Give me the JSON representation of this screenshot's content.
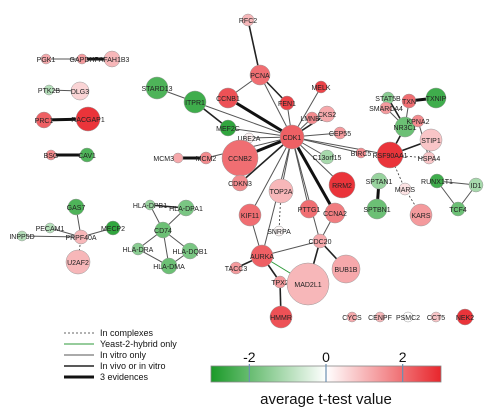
{
  "colors": {
    "red": "#e8262c",
    "green": "#22a030",
    "white": "#ffffff"
  },
  "nodes": [
    {
      "id": "CDK1",
      "v": 2.2
    },
    {
      "id": "PCNA",
      "v": 2.0
    },
    {
      "id": "RFC2",
      "v": 1.0
    },
    {
      "id": "CCNB1",
      "v": 2.4
    },
    {
      "id": "FEN1",
      "v": 2.6
    },
    {
      "id": "MELK",
      "v": 2.6
    },
    {
      "id": "LMNB1",
      "v": 1.6
    },
    {
      "id": "STARD13",
      "v": -2.4
    },
    {
      "id": "ITPR1",
      "v": -2.6
    },
    {
      "id": "MEF2C",
      "v": -2.8
    },
    {
      "id": "CKS2",
      "v": 1.2
    },
    {
      "id": "CEP55",
      "v": 1.4
    },
    {
      "id": "UBE2A",
      "v": 0.2
    },
    {
      "id": "C13orf15",
      "v": -1.2
    },
    {
      "id": "BIRC5",
      "v": 1.6
    },
    {
      "id": "MCM3",
      "v": 1.2
    },
    {
      "id": "MCM2",
      "v": 1.6
    },
    {
      "id": "CCNB2",
      "v": 2.0
    },
    {
      "id": "CDKN3",
      "v": 1.6
    },
    {
      "id": "TOP2A",
      "v": 1.0
    },
    {
      "id": "RRM2",
      "v": 2.8
    },
    {
      "id": "KIF11",
      "v": 2.0
    },
    {
      "id": "PTTG1",
      "v": 2.0
    },
    {
      "id": "CCNA2",
      "v": 1.8
    },
    {
      "id": "SNRPA",
      "v": 0.1
    },
    {
      "id": "CDC20",
      "v": 1.2
    },
    {
      "id": "AURKA",
      "v": 2.2
    },
    {
      "id": "TACC3",
      "v": 1.4
    },
    {
      "id": "TPX2",
      "v": 1.4
    },
    {
      "id": "MAD2L1",
      "v": 1.0
    },
    {
      "id": "BUB1B",
      "v": 1.2
    },
    {
      "id": "HMMR",
      "v": 2.4
    },
    {
      "id": "PGK1",
      "v": 1.2
    },
    {
      "id": "GAPDH",
      "v": 1.4
    },
    {
      "id": "PAFAH1B3",
      "v": 1.0
    },
    {
      "id": "PTK2B",
      "v": -1.0
    },
    {
      "id": "DLG3",
      "v": 0.6
    },
    {
      "id": "PRC1",
      "v": 2.2
    },
    {
      "id": "RACGAP1",
      "v": 2.8
    },
    {
      "id": "BSG",
      "v": 1.6
    },
    {
      "id": "CAV1",
      "v": -2.4
    },
    {
      "id": "STAT5B",
      "v": -1.6
    },
    {
      "id": "TXN",
      "v": 2.0
    },
    {
      "id": "TXNIP",
      "v": -2.6
    },
    {
      "id": "SMARCA4",
      "v": 1.4
    },
    {
      "id": "NR3C1",
      "v": -2.0
    },
    {
      "id": "KPNA2",
      "v": 1.6
    },
    {
      "id": "RSF90AA1",
      "v": 2.8
    },
    {
      "id": "STIP1",
      "v": 0.8
    },
    {
      "id": "HSPA4",
      "v": 0.8
    },
    {
      "id": "SPTAN1",
      "v": -1.4
    },
    {
      "id": "MARS",
      "v": 0.4
    },
    {
      "id": "RUNX1T1",
      "v": -2.6
    },
    {
      "id": "ID1",
      "v": -1.2
    },
    {
      "id": "SPTBN1",
      "v": -2.0
    },
    {
      "id": "TCF4",
      "v": -2.0
    },
    {
      "id": "KARS",
      "v": 1.4
    },
    {
      "id": "GAS7",
      "v": -2.4
    },
    {
      "id": "PECAM1",
      "v": -1.0
    },
    {
      "id": "MECP2",
      "v": -2.8
    },
    {
      "id": "INPP5D",
      "v": -1.0
    },
    {
      "id": "PRPF40A",
      "v": 1.0
    },
    {
      "id": "U2AF2",
      "v": 1.0
    },
    {
      "id": "HLA-DPB1",
      "v": -1.4
    },
    {
      "id": "HLA-DPA1",
      "v": -1.8
    },
    {
      "id": "CD74",
      "v": -2.0
    },
    {
      "id": "HLA-DRA",
      "v": -1.6
    },
    {
      "id": "HLA-DQB1",
      "v": -1.8
    },
    {
      "id": "HLA-DMA",
      "v": -2.0
    },
    {
      "id": "CYCS",
      "v": 1.2
    },
    {
      "id": "CENPF",
      "v": 1.0
    },
    {
      "id": "PSMC2",
      "v": 0.0
    },
    {
      "id": "CCT5",
      "v": 0.8
    },
    {
      "id": "NEK2",
      "v": 2.8
    }
  ],
  "edges": [
    {
      "a": "CDK1",
      "b": "PCNA",
      "t": "invitro"
    },
    {
      "a": "CDK1",
      "b": "CCNB1",
      "t": "three"
    },
    {
      "a": "CDK1",
      "b": "FEN1",
      "t": "invitro"
    },
    {
      "a": "CDK1",
      "b": "MELK",
      "t": "invitro"
    },
    {
      "a": "CDK1",
      "b": "LMNB1",
      "t": "invitro"
    },
    {
      "a": "CDK1",
      "b": "CKS2",
      "t": "vivo"
    },
    {
      "a": "CDK1",
      "b": "CEP55",
      "t": "invitro"
    },
    {
      "a": "CDK1",
      "b": "C13orf15",
      "t": "invitro"
    },
    {
      "a": "CDK1",
      "b": "BIRC5",
      "t": "invitro"
    },
    {
      "a": "CDK1",
      "b": "UBE2A",
      "t": "invitro"
    },
    {
      "a": "CDK1",
      "b": "CCNB2",
      "t": "three"
    },
    {
      "a": "CDK1",
      "b": "CDKN3",
      "t": "vivo"
    },
    {
      "a": "CDK1",
      "b": "TOP2A",
      "t": "invitro"
    },
    {
      "a": "CDK1",
      "b": "RRM2",
      "t": "invitro"
    },
    {
      "a": "CDK1",
      "b": "KIF11",
      "t": "invitro"
    },
    {
      "a": "CDK1",
      "b": "PTTG1",
      "t": "invitro"
    },
    {
      "a": "CDK1",
      "b": "CCNA2",
      "t": "three"
    },
    {
      "a": "CDK1",
      "b": "MEF2C",
      "t": "invitro"
    },
    {
      "a": "CDK1",
      "b": "ITPR1",
      "t": "invitro"
    },
    {
      "a": "CDK1",
      "b": "MCM2",
      "t": "invitro"
    },
    {
      "a": "CDK1",
      "b": "RSF90AA1",
      "t": "invitro"
    },
    {
      "a": "CDK1",
      "b": "AURKA",
      "t": "invitro"
    },
    {
      "a": "CDK1",
      "b": "CDC20",
      "t": "invitro"
    },
    {
      "a": "PCNA",
      "b": "RFC2",
      "t": "vivo"
    },
    {
      "a": "PCNA",
      "b": "FEN1",
      "t": "vivo"
    },
    {
      "a": "PCNA",
      "b": "CCNB1",
      "t": "invitro"
    },
    {
      "a": "STARD13",
      "b": "ITPR1",
      "t": "invitro"
    },
    {
      "a": "ITPR1",
      "b": "MEF2C",
      "t": "vivo"
    },
    {
      "a": "MCM3",
      "b": "MCM2",
      "t": "three"
    },
    {
      "a": "TOP2A",
      "b": "SNRPA",
      "t": "complex"
    },
    {
      "a": "CCNA2",
      "b": "CDC20",
      "t": "invitro"
    },
    {
      "a": "CDC20",
      "b": "MAD2L1",
      "t": "vivo"
    },
    {
      "a": "CDC20",
      "b": "BUB1B",
      "t": "vivo"
    },
    {
      "a": "CDC20",
      "b": "AURKA",
      "t": "invitro"
    },
    {
      "a": "AURKA",
      "b": "TACC3",
      "t": "vivo"
    },
    {
      "a": "AURKA",
      "b": "TPX2",
      "t": "vivo"
    },
    {
      "a": "AURKA",
      "b": "KIF11",
      "t": "invitro"
    },
    {
      "a": "AURKA",
      "b": "MAD2L1",
      "t": "yeast"
    },
    {
      "a": "TPX2",
      "b": "HMMR",
      "t": "vivo"
    },
    {
      "a": "PGK1",
      "b": "GAPDH",
      "t": "invitro"
    },
    {
      "a": "GAPDH",
      "b": "PAFAH1B3",
      "t": "three"
    },
    {
      "a": "PTK2B",
      "b": "DLG3",
      "t": "invitro"
    },
    {
      "a": "PRC1",
      "b": "RACGAP1",
      "t": "three"
    },
    {
      "a": "BSG",
      "b": "CAV1",
      "t": "three"
    },
    {
      "a": "STAT5B",
      "b": "NR3C1",
      "t": "vivo"
    },
    {
      "a": "TXN",
      "b": "TXNIP",
      "t": "three"
    },
    {
      "a": "SMARCA4",
      "b": "NR3C1",
      "t": "invitro"
    },
    {
      "a": "NR3C1",
      "b": "RSF90AA1",
      "t": "vivo"
    },
    {
      "a": "NR3C1",
      "b": "TXN",
      "t": "invitro"
    },
    {
      "a": "NR3C1",
      "b": "KPNA2",
      "t": "invitro"
    },
    {
      "a": "RSF90AA1",
      "b": "STIP1",
      "t": "vivo"
    },
    {
      "a": "RSF90AA1",
      "b": "HSPA4",
      "t": "complex"
    },
    {
      "a": "RSF90AA1",
      "b": "MARS",
      "t": "complex"
    },
    {
      "a": "KPNA2",
      "b": "HSPA4",
      "t": "invitro"
    },
    {
      "a": "STIP1",
      "b": "HSPA4",
      "t": "invitro"
    },
    {
      "a": "MARS",
      "b": "KARS",
      "t": "complex"
    },
    {
      "a": "RUNX1T1",
      "b": "ID1",
      "t": "invitro"
    },
    {
      "a": "RUNX1T1",
      "b": "TCF4",
      "t": "invitro"
    },
    {
      "a": "ID1",
      "b": "TCF4",
      "t": "invitro"
    },
    {
      "a": "SPTAN1",
      "b": "SPTBN1",
      "t": "three"
    },
    {
      "a": "GAS7",
      "b": "PRPF40A",
      "t": "invitro"
    },
    {
      "a": "PECAM1",
      "b": "PRPF40A",
      "t": "invitro"
    },
    {
      "a": "INPP5D",
      "b": "PRPF40A",
      "t": "invitro"
    },
    {
      "a": "MECP2",
      "b": "PRPF40A",
      "t": "invitro"
    },
    {
      "a": "PRPF40A",
      "b": "U2AF2",
      "t": "complex"
    },
    {
      "a": "HLA-DPB1",
      "b": "HLA-DPA1",
      "t": "vivo"
    },
    {
      "a": "HLA-DPB1",
      "b": "CD74",
      "t": "invitro"
    },
    {
      "a": "HLA-DPA1",
      "b": "CD74",
      "t": "invitro"
    },
    {
      "a": "CD74",
      "b": "HLA-DRA",
      "t": "invitro"
    },
    {
      "a": "CD74",
      "b": "HLA-DQB1",
      "t": "invitro"
    },
    {
      "a": "CD74",
      "b": "HLA-DMA",
      "t": "invitro"
    },
    {
      "a": "HLA-DRA",
      "b": "HLA-DMA",
      "t": "invitro"
    },
    {
      "a": "HLA-DQB1",
      "b": "HLA-DMA",
      "t": "invitro"
    }
  ],
  "legend": [
    {
      "type": "complex",
      "label": "In complexes"
    },
    {
      "type": "yeast",
      "label": "Yeast-2-hybrid only"
    },
    {
      "type": "invitro",
      "label": "In vitro only"
    },
    {
      "type": "vivo",
      "label": "In vivo or in vitro"
    },
    {
      "type": "three",
      "label": "3 evidences"
    }
  ],
  "colorbar": {
    "min": -3,
    "max": 3,
    "ticks": [
      {
        "value": -2,
        "label": "-2"
      },
      {
        "value": 0,
        "label": "0"
      },
      {
        "value": 2,
        "label": "2"
      }
    ],
    "title": "average t-test value"
  }
}
